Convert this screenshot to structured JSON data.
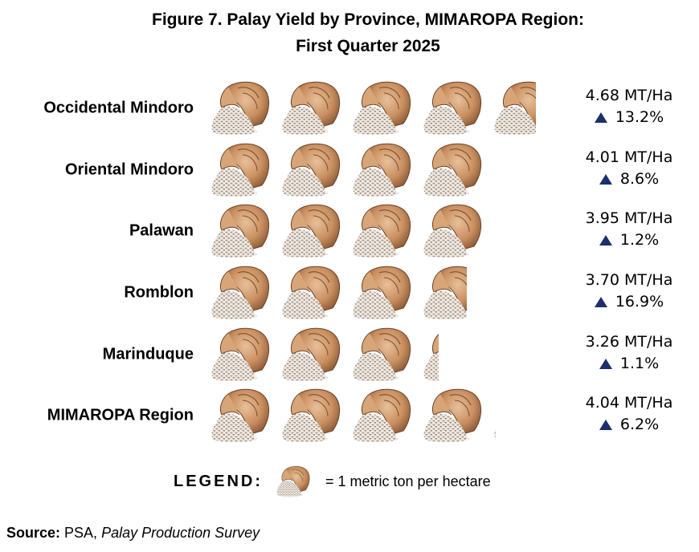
{
  "title_line1": "Figure 7. Palay Yield by Province, MIMAROPA Region:",
  "title_line2": "First Quarter 2025",
  "chart_data": {
    "type": "pictograph",
    "unit": "MT/Ha",
    "icon": "rice-sack-icon",
    "icon_value": 1,
    "categories": [
      "Occidental Mindoro",
      "Oriental Mindoro",
      "Palawan",
      "Romblon",
      "Marinduque",
      "MIMAROPA Region"
    ],
    "values": [
      4.68,
      4.01,
      3.95,
      3.7,
      3.26,
      4.04
    ],
    "value_labels": [
      "4.68 MT/Ha",
      "4.01 MT/Ha",
      "3.95 MT/Ha",
      "3.70 MT/Ha",
      "3.26 MT/Ha",
      "4.04 MT/Ha"
    ],
    "changes": [
      "13.2%",
      "8.6%",
      "1.2%",
      "16.9%",
      "1.1%",
      "6.2%"
    ],
    "change_direction": [
      "up",
      "up",
      "up",
      "up",
      "up",
      "up"
    ]
  },
  "legend": {
    "title": "LEGEND:",
    "text": "= 1 metric ton per hectare"
  },
  "source": {
    "label": "Source:",
    "org": " PSA, ",
    "survey": "Palay Production Survey"
  },
  "colors": {
    "arrow": "#1c2e6b",
    "sack_light": "#d9aa7e",
    "sack_dark": "#8a5a35",
    "grain": "#b8aa9e"
  }
}
